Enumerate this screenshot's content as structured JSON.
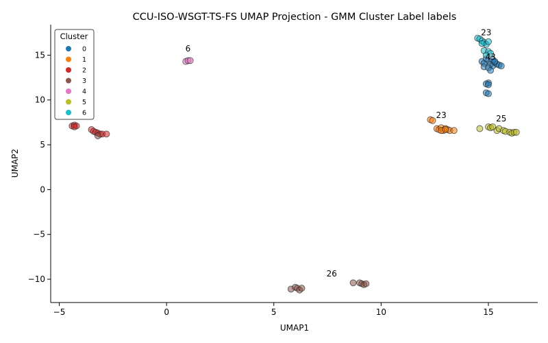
{
  "chart_data": {
    "type": "scatter",
    "title": "CCU-ISO-WSGT-TS-FS UMAP Projection - GMM Cluster Label labels",
    "xlabel": "UMAP1",
    "ylabel": "UMAP2",
    "xlim": [
      -5.4,
      17.3
    ],
    "ylim": [
      -12.6,
      18.4
    ],
    "xticks": [
      -5,
      0,
      5,
      10,
      15
    ],
    "yticks": [
      -10,
      -5,
      0,
      5,
      10,
      15
    ],
    "xtick_labels": [
      "−5",
      "0",
      "5",
      "10",
      "15"
    ],
    "ytick_labels": [
      "−10",
      "−5",
      "0",
      "5",
      "10",
      "15"
    ],
    "grid": false,
    "legend": {
      "title": "Cluster",
      "placement": "top-left",
      "entries": [
        {
          "label": "0",
          "color": "#1f77b4"
        },
        {
          "label": "1",
          "color": "#ff7f0e"
        },
        {
          "label": "2",
          "color": "#d62728"
        },
        {
          "label": "3",
          "color": "#8c564b"
        },
        {
          "label": "4",
          "color": "#e377c2"
        },
        {
          "label": "5",
          "color": "#bcbd22"
        },
        {
          "label": "6",
          "color": "#17becf"
        }
      ]
    },
    "series": [
      {
        "name": "0",
        "color": "#1f77b4",
        "points": [
          [
            14.7,
            14.3
          ],
          [
            14.8,
            14.1
          ],
          [
            15.0,
            14.4
          ],
          [
            15.1,
            14.0
          ],
          [
            15.2,
            13.8
          ],
          [
            15.3,
            14.2
          ],
          [
            15.4,
            14.0
          ],
          [
            15.5,
            13.9
          ],
          [
            15.6,
            13.8
          ],
          [
            14.8,
            13.7
          ],
          [
            15.0,
            13.6
          ],
          [
            15.1,
            13.3
          ],
          [
            15.2,
            14.5
          ],
          [
            14.9,
            14.6
          ],
          [
            15.0,
            11.9
          ],
          [
            14.9,
            11.8
          ],
          [
            15.0,
            11.7
          ],
          [
            14.9,
            10.8
          ],
          [
            15.0,
            10.7
          ],
          [
            15.3,
            14.3
          ]
        ]
      },
      {
        "name": "1",
        "color": "#ff7f0e",
        "points": [
          [
            12.3,
            7.8
          ],
          [
            12.4,
            7.7
          ],
          [
            12.6,
            6.8
          ],
          [
            12.7,
            6.7
          ],
          [
            12.8,
            6.9
          ],
          [
            12.9,
            6.6
          ],
          [
            13.0,
            6.8
          ],
          [
            13.1,
            6.7
          ],
          [
            13.2,
            6.6
          ],
          [
            13.4,
            6.6
          ],
          [
            12.8,
            6.6
          ],
          [
            13.0,
            6.7
          ]
        ]
      },
      {
        "name": "2",
        "color": "#d62728",
        "points": [
          [
            -4.4,
            7.1
          ],
          [
            -4.3,
            7.2
          ],
          [
            -4.2,
            7.1
          ],
          [
            -4.3,
            7.0
          ],
          [
            -3.5,
            6.7
          ],
          [
            -3.4,
            6.5
          ],
          [
            -3.3,
            6.4
          ],
          [
            -3.2,
            6.3
          ],
          [
            -3.1,
            6.2
          ],
          [
            -3.0,
            6.2
          ],
          [
            -2.8,
            6.2
          ]
        ]
      },
      {
        "name": "3",
        "color": "#8c564b",
        "points": [
          [
            -3.2,
            6.0
          ],
          [
            5.8,
            -11.1
          ],
          [
            6.0,
            -10.9
          ],
          [
            6.1,
            -11.0
          ],
          [
            6.2,
            -11.2
          ],
          [
            6.3,
            -11.0
          ],
          [
            8.7,
            -10.4
          ],
          [
            9.0,
            -10.4
          ],
          [
            9.1,
            -10.5
          ],
          [
            9.2,
            -10.6
          ],
          [
            9.3,
            -10.5
          ]
        ]
      },
      {
        "name": "4",
        "color": "#e377c2",
        "points": [
          [
            0.9,
            14.3
          ],
          [
            1.0,
            14.4
          ],
          [
            1.1,
            14.4
          ]
        ]
      },
      {
        "name": "5",
        "color": "#bcbd22",
        "points": [
          [
            14.6,
            6.8
          ],
          [
            15.0,
            7.0
          ],
          [
            15.1,
            6.9
          ],
          [
            15.2,
            7.0
          ],
          [
            15.4,
            6.6
          ],
          [
            15.5,
            6.8
          ],
          [
            15.7,
            6.6
          ],
          [
            15.8,
            6.5
          ],
          [
            16.0,
            6.4
          ],
          [
            16.1,
            6.3
          ],
          [
            16.2,
            6.4
          ],
          [
            16.3,
            6.4
          ]
        ]
      },
      {
        "name": "6",
        "color": "#17becf",
        "points": [
          [
            14.5,
            16.9
          ],
          [
            14.6,
            16.8
          ],
          [
            14.7,
            16.6
          ],
          [
            14.8,
            16.4
          ],
          [
            14.9,
            16.2
          ],
          [
            15.0,
            16.5
          ],
          [
            14.8,
            15.5
          ],
          [
            15.0,
            15.4
          ],
          [
            15.1,
            15.2
          ],
          [
            14.9,
            15.0
          ],
          [
            14.7,
            16.3
          ]
        ]
      }
    ],
    "annotations": [
      {
        "text": "23",
        "x": 14.9,
        "y": 17.2
      },
      {
        "text": "6",
        "x": 1.0,
        "y": 15.4
      },
      {
        "text": "43",
        "x": 15.1,
        "y": 14.5
      },
      {
        "text": "23",
        "x": 12.8,
        "y": 8.0
      },
      {
        "text": "25",
        "x": 15.6,
        "y": 7.6
      },
      {
        "text": "26",
        "x": 7.7,
        "y": -9.7
      }
    ]
  }
}
